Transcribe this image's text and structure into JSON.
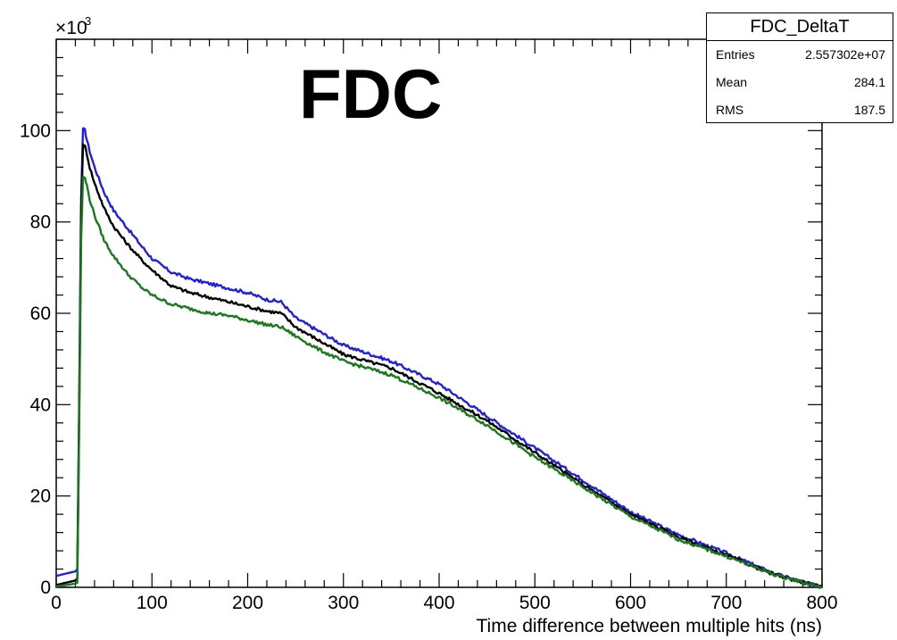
{
  "chart_data": {
    "type": "line",
    "title": "FDC",
    "xlabel": "Time difference between multiple hits (ns)",
    "ylabel": "",
    "y_exponent_label": "×10",
    "y_exponent_power": "3",
    "xlim": [
      0,
      800
    ],
    "ylim": [
      0,
      120
    ],
    "x_ticks": [
      0,
      100,
      200,
      300,
      400,
      500,
      600,
      700,
      800
    ],
    "y_ticks": [
      0,
      20,
      40,
      60,
      80,
      100
    ],
    "x_tick_labels": [
      "0",
      "100",
      "200",
      "300",
      "400",
      "500",
      "600",
      "700",
      "800"
    ],
    "y_tick_labels": [
      "0",
      "20",
      "40",
      "60",
      "80",
      "100"
    ],
    "grid": false,
    "series": [
      {
        "color": "#2020e0",
        "x": [
          0,
          10,
          20,
          22,
          24,
          26,
          28,
          30,
          32,
          35,
          40,
          50,
          60,
          75,
          90,
          100,
          120,
          140,
          160,
          180,
          200,
          220,
          235,
          250,
          275,
          300,
          350,
          400,
          450,
          500,
          550,
          600,
          650,
          700,
          750,
          800
        ],
        "y": [
          2.5,
          3.0,
          3.5,
          4.0,
          40.0,
          85.0,
          100.5,
          100.0,
          98.0,
          95.5,
          92.0,
          86.5,
          82.5,
          78.5,
          74.5,
          72.0,
          69.0,
          67.5,
          66.5,
          65.5,
          64.5,
          63.0,
          62.5,
          59.0,
          56.0,
          53.0,
          49.5,
          44.5,
          37.5,
          30.5,
          23.5,
          16.5,
          11.5,
          7.5,
          3.0,
          0
        ]
      },
      {
        "color": "#000000",
        "x": [
          0,
          10,
          20,
          22,
          24,
          26,
          28,
          30,
          32,
          35,
          40,
          50,
          60,
          75,
          90,
          100,
          120,
          140,
          160,
          180,
          200,
          220,
          235,
          250,
          275,
          300,
          350,
          400,
          450,
          500,
          550,
          600,
          650,
          700,
          750,
          800
        ],
        "y": [
          0.5,
          1.0,
          1.5,
          2.0,
          38.0,
          82.0,
          97.0,
          96.5,
          95.0,
          92.0,
          88.5,
          83.0,
          79.0,
          75.0,
          71.5,
          69.5,
          66.0,
          64.5,
          63.5,
          62.5,
          61.5,
          60.5,
          60.0,
          57.0,
          54.0,
          51.0,
          48.0,
          42.5,
          36.5,
          29.5,
          22.5,
          16.0,
          11.0,
          7.0,
          2.8,
          0
        ]
      },
      {
        "color": "#1a7a1a",
        "x": [
          0,
          10,
          20,
          22,
          24,
          26,
          28,
          30,
          32,
          35,
          40,
          50,
          60,
          75,
          90,
          100,
          120,
          140,
          160,
          180,
          200,
          220,
          235,
          250,
          275,
          300,
          350,
          400,
          450,
          500,
          550,
          600,
          650,
          700,
          750,
          800
        ],
        "y": [
          0.2,
          0.5,
          0.8,
          1.0,
          35.0,
          76.0,
          90.0,
          89.5,
          88.0,
          85.0,
          81.5,
          76.0,
          72.5,
          68.5,
          65.5,
          64.0,
          62.0,
          61.0,
          60.0,
          59.5,
          58.5,
          57.5,
          57.0,
          55.0,
          52.0,
          49.5,
          46.5,
          41.5,
          35.5,
          28.5,
          22.0,
          15.5,
          10.5,
          6.8,
          2.8,
          0
        ]
      }
    ]
  },
  "stats_box": {
    "title": "FDC_DeltaT",
    "rows": [
      {
        "label": "Entries",
        "value": "2.557302e+07"
      },
      {
        "label": "Mean",
        "value": "284.1"
      },
      {
        "label": "RMS",
        "value": "187.5"
      }
    ]
  }
}
